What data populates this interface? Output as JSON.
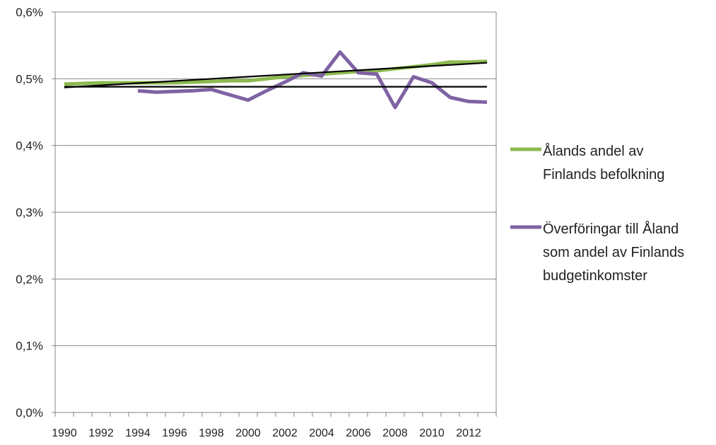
{
  "chart_data": {
    "type": "line",
    "x": [
      1990,
      1991,
      1992,
      1993,
      1994,
      1995,
      1996,
      1997,
      1998,
      1999,
      2000,
      2001,
      2002,
      2003,
      2004,
      2005,
      2006,
      2007,
      2008,
      2009,
      2010,
      2011,
      2012,
      2013
    ],
    "x_tick_labels": [
      "1990",
      "1992",
      "1994",
      "1996",
      "1998",
      "2000",
      "2002",
      "2004",
      "2006",
      "2008",
      "2010",
      "2012"
    ],
    "y_tick_labels": [
      "0,0%",
      "0,1%",
      "0,2%",
      "0,3%",
      "0,4%",
      "0,5%",
      "0,6%"
    ],
    "ylim": [
      0,
      0.6
    ],
    "y_unit": "%",
    "grid": "horizontal",
    "legend_position": "right",
    "series": [
      {
        "name": "Ålands andel av Finlands befolkning",
        "legend_lines": [
          "Ålands andel av",
          "Finlands befolkning"
        ],
        "color": "#8DB94F",
        "values": [
          0.492,
          0.493,
          0.494,
          0.494,
          0.494,
          0.494,
          0.494,
          0.495,
          0.496,
          0.497,
          0.497,
          0.5,
          0.503,
          0.505,
          0.507,
          0.509,
          0.511,
          0.512,
          0.515,
          0.518,
          0.521,
          0.525,
          0.525,
          0.526
        ]
      },
      {
        "name": "Överföringar till Åland som andel av Finlands budgetinkomster",
        "legend_lines": [
          "Överföringar till Åland",
          "som andel av Finlands",
          "budgetinkomster"
        ],
        "color": "#7F62A3",
        "values": [
          null,
          null,
          null,
          null,
          0.482,
          0.48,
          0.481,
          0.482,
          0.484,
          0.476,
          0.468,
          0.482,
          0.495,
          0.509,
          0.504,
          0.54,
          0.509,
          0.507,
          0.457,
          0.503,
          0.494,
          0.472,
          0.466,
          0.465
        ]
      }
    ],
    "reference_lines": [
      {
        "kind": "trend",
        "color": "#000000",
        "x": [
          1990,
          2013
        ],
        "y": [
          0.487,
          0.524
        ]
      },
      {
        "kind": "horizontal",
        "color": "#000000",
        "x": [
          1990,
          2013
        ],
        "y": [
          0.488,
          0.488
        ]
      }
    ]
  }
}
